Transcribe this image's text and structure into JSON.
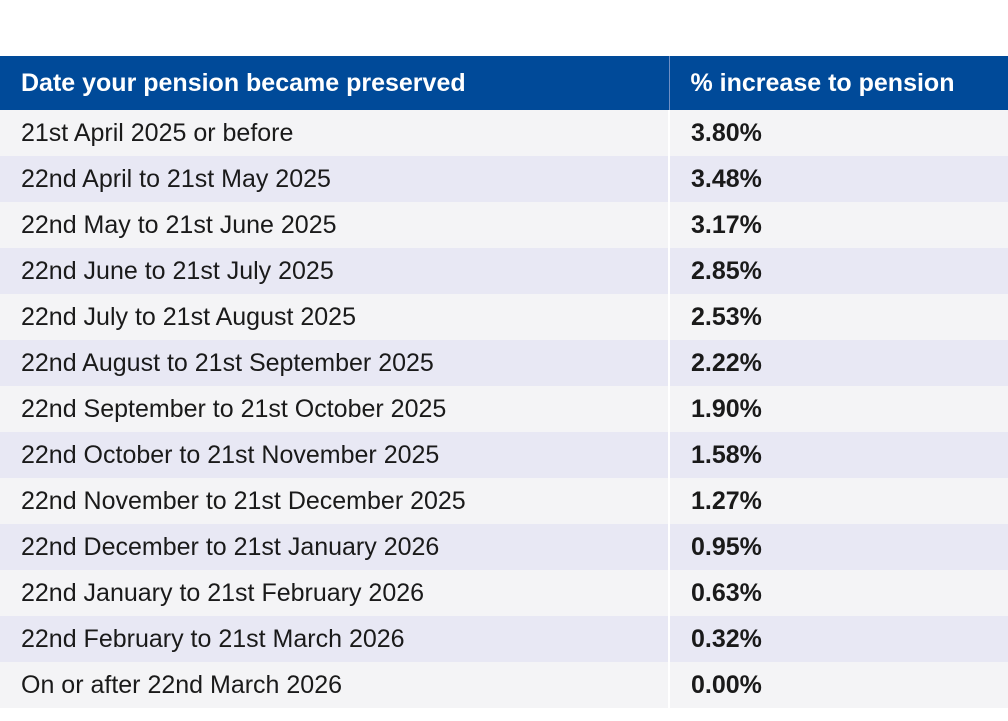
{
  "table": {
    "headers": {
      "date": "Date your pension became preserved",
      "increase": "% increase to pension"
    },
    "rows": [
      {
        "date": "21st April 2025 or before",
        "increase": "3.80%"
      },
      {
        "date": "22nd April to 21st May 2025",
        "increase": "3.48%"
      },
      {
        "date": "22nd May to 21st June 2025",
        "increase": "3.17%"
      },
      {
        "date": "22nd June to 21st July 2025",
        "increase": "2.85%"
      },
      {
        "date": "22nd July to 21st August 2025",
        "increase": "2.53%"
      },
      {
        "date": "22nd August to 21st September 2025",
        "increase": "2.22%"
      },
      {
        "date": "22nd September to 21st October 2025",
        "increase": "1.90%"
      },
      {
        "date": "22nd October to 21st November 2025",
        "increase": "1.58%"
      },
      {
        "date": "22nd November to 21st December 2025",
        "increase": "1.27%"
      },
      {
        "date": "22nd December to 21st January 2026",
        "increase": "0.95%"
      },
      {
        "date": "22nd January to 21st February 2026",
        "increase": "0.63%"
      },
      {
        "date": "22nd February to 21st March 2026",
        "increase": "0.32%"
      },
      {
        "date": "On or after 22nd March 2026",
        "increase": "0.00%"
      }
    ]
  },
  "colors": {
    "header_bg": "#004a99",
    "row_odd": "#f4f4f6",
    "row_even": "#e8e8f4"
  }
}
